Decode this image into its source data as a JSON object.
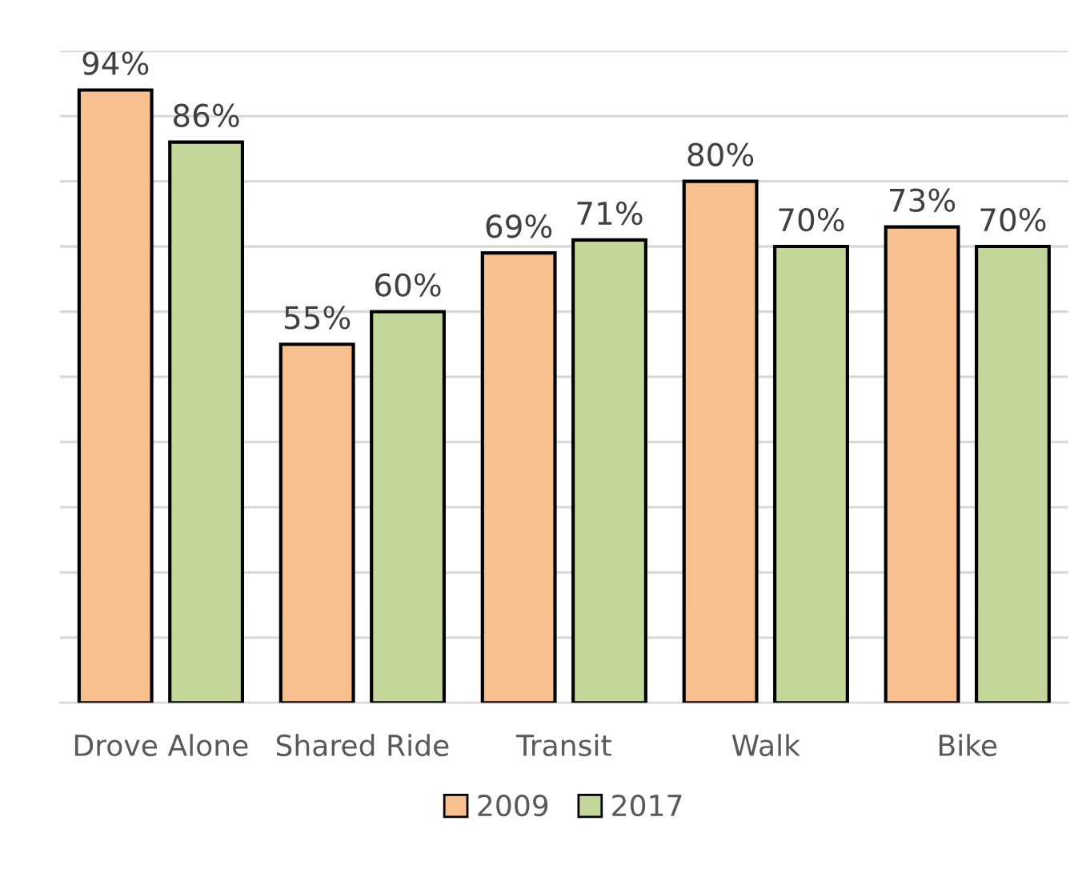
{
  "chart_data": {
    "type": "bar",
    "categories": [
      "Drove Alone",
      "Shared Ride",
      "Transit",
      "Walk",
      "Bike"
    ],
    "series": [
      {
        "name": "2009",
        "color": "#f8bf8f",
        "values": [
          94,
          55,
          69,
          80,
          73
        ],
        "value_labels": [
          "94%",
          "55%",
          "69%",
          "80%",
          "73%"
        ]
      },
      {
        "name": "2017",
        "color": "#c4d79b",
        "values": [
          86,
          60,
          71,
          70,
          70
        ],
        "value_labels": [
          "86%",
          "60%",
          "71%",
          "70%",
          "70%"
        ]
      }
    ],
    "ylim": [
      0,
      100
    ],
    "yticks": [
      {
        "value": 0,
        "label": null
      },
      {
        "value": 10,
        "label": null
      },
      {
        "value": 20,
        "label": null
      },
      {
        "value": 30,
        "label": null
      },
      {
        "value": 40,
        "label": null
      },
      {
        "value": 50,
        "label": null
      },
      {
        "value": 60,
        "label": null
      },
      {
        "value": 70,
        "label": null
      },
      {
        "value": 80,
        "label": null
      },
      {
        "value": 90,
        "label": null
      },
      {
        "value": 100,
        "label": null
      }
    ],
    "grid": "y",
    "legend": "bottom",
    "tick_labels": "x"
  }
}
